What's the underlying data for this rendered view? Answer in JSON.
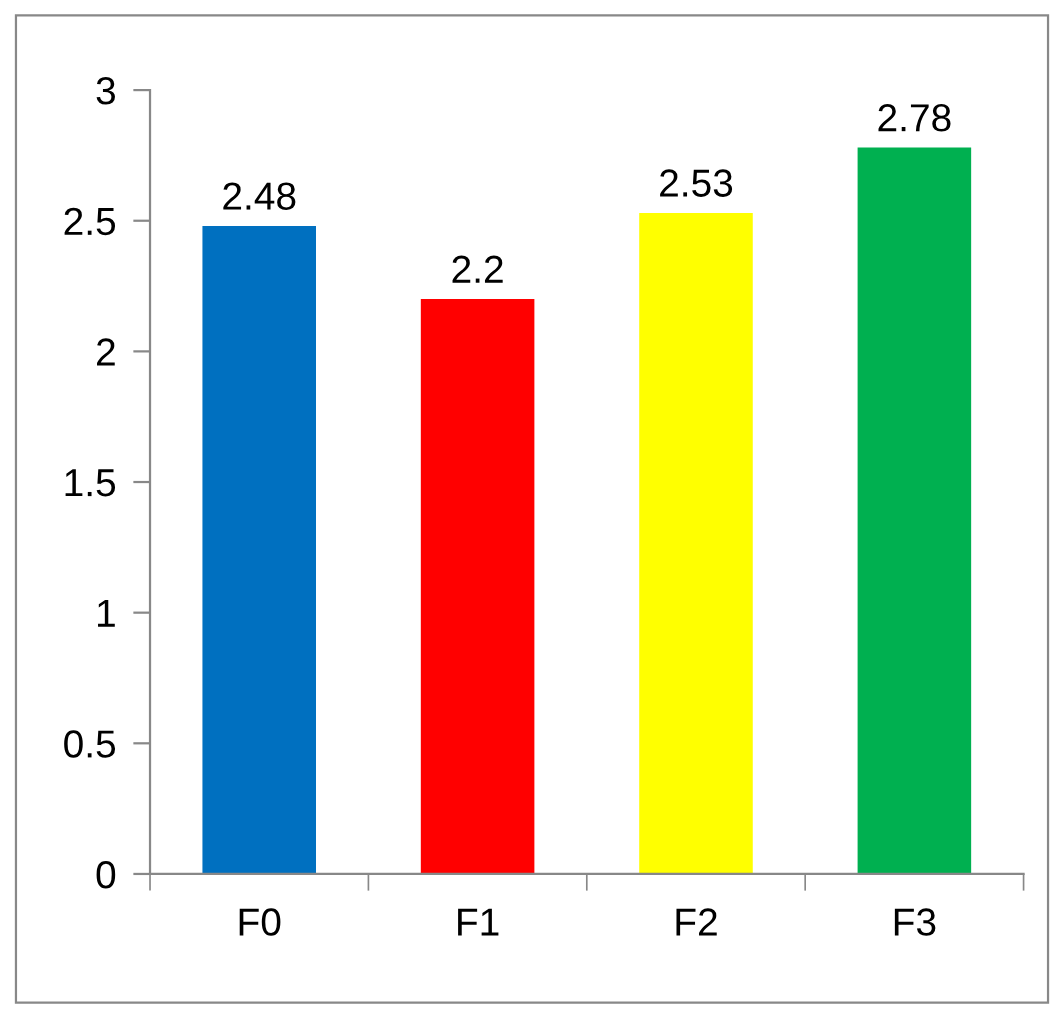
{
  "chart_data": {
    "type": "bar",
    "categories": [
      "F0",
      "F1",
      "F2",
      "F3"
    ],
    "values": [
      2.48,
      2.2,
      2.53,
      2.78
    ],
    "colors": [
      "#0070c0",
      "#ff0000",
      "#ffff00",
      "#00b050"
    ],
    "ylim": [
      0,
      3
    ],
    "yticks": [
      0,
      0.5,
      1,
      1.5,
      2,
      2.5,
      3
    ],
    "grid": false,
    "legend": false,
    "data_labels": true
  }
}
